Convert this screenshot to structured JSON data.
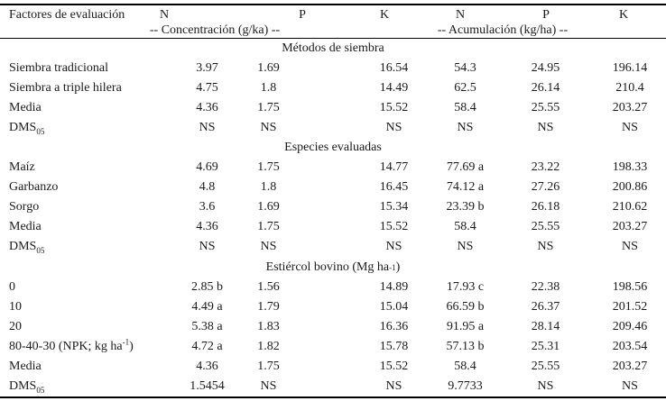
{
  "table": {
    "header": {
      "factor_label": "Factores de evaluación",
      "col_letters": [
        "N",
        "P",
        "K",
        "N",
        "P",
        "K"
      ],
      "group1": "-- Concentración (g/ka) --",
      "group2": "-- Acumulación (kg/ha) --"
    },
    "sections": [
      {
        "title": "Métodos de siembra",
        "rows": [
          {
            "label": "Siembra tradicional",
            "values": [
              "3.97",
              "1.69",
              "16.54",
              "54.3",
              "24.95",
              "196.14"
            ]
          },
          {
            "label": "Siembra a triple hilera",
            "values": [
              "4.75",
              "1.8",
              "14.49",
              "62.5",
              "26.14",
              "210.4"
            ]
          },
          {
            "label": "Media",
            "values": [
              "4.36",
              "1.75",
              "15.52",
              "58.4",
              "25.55",
              "203.27"
            ]
          },
          {
            "label": "DMS",
            "label_sub": "05",
            "values": [
              "NS",
              "NS",
              "NS",
              "NS",
              "NS",
              "NS"
            ]
          }
        ]
      },
      {
        "title": "Especies evaluadas",
        "rows": [
          {
            "label": "Maíz",
            "values": [
              "4.69",
              "1.75",
              "14.77",
              "77.69 a",
              "23.22",
              "198.33"
            ]
          },
          {
            "label": "Garbanzo",
            "values": [
              "4.8",
              "1.8",
              "16.45",
              "74.12 a",
              "27.26",
              "200.86"
            ]
          },
          {
            "label": "Sorgo",
            "values": [
              "3.6",
              "1.69",
              "15.34",
              "23.39 b",
              "26.18",
              "210.62"
            ]
          },
          {
            "label": "Media",
            "values": [
              "4.36",
              "1.75",
              "15.52",
              "58.4",
              "25.55",
              "203.27"
            ]
          },
          {
            "label": "DMS",
            "label_sub": "05",
            "values": [
              "NS",
              "NS",
              "NS",
              "NS",
              "NS",
              "NS"
            ]
          }
        ]
      },
      {
        "title": "Estiércol bovino (Mg ha",
        "title_sup": "-1",
        "title_end": ")",
        "rows": [
          {
            "label": "0",
            "values": [
              "2.85 b",
              "1.56",
              "14.89",
              "17.93 c",
              "22.38",
              "198.56"
            ]
          },
          {
            "label": "10",
            "values": [
              "4.49 a",
              "1.79",
              "15.04",
              "66.59 b",
              "26.37",
              "201.52"
            ]
          },
          {
            "label": "20",
            "values": [
              "5.38 a",
              "1.83",
              "16.36",
              "91.95 a",
              "28.14",
              "209.46"
            ]
          },
          {
            "label": "80-40-30 (NPK; kg ha",
            "label_sup": "-1",
            "label_end": ")",
            "values": [
              "4.72 a",
              "1.82",
              "15.78",
              "57.13 b",
              "25.31",
              "203.54"
            ]
          },
          {
            "label": "Media",
            "values": [
              "4.36",
              "1.75",
              "15.52",
              "58.4",
              "25.55",
              "203.27"
            ]
          },
          {
            "label": "DMS",
            "label_sub": "05",
            "values": [
              "1.5454",
              "NS",
              "NS",
              "9.7733",
              "NS",
              "NS"
            ]
          }
        ]
      }
    ]
  }
}
